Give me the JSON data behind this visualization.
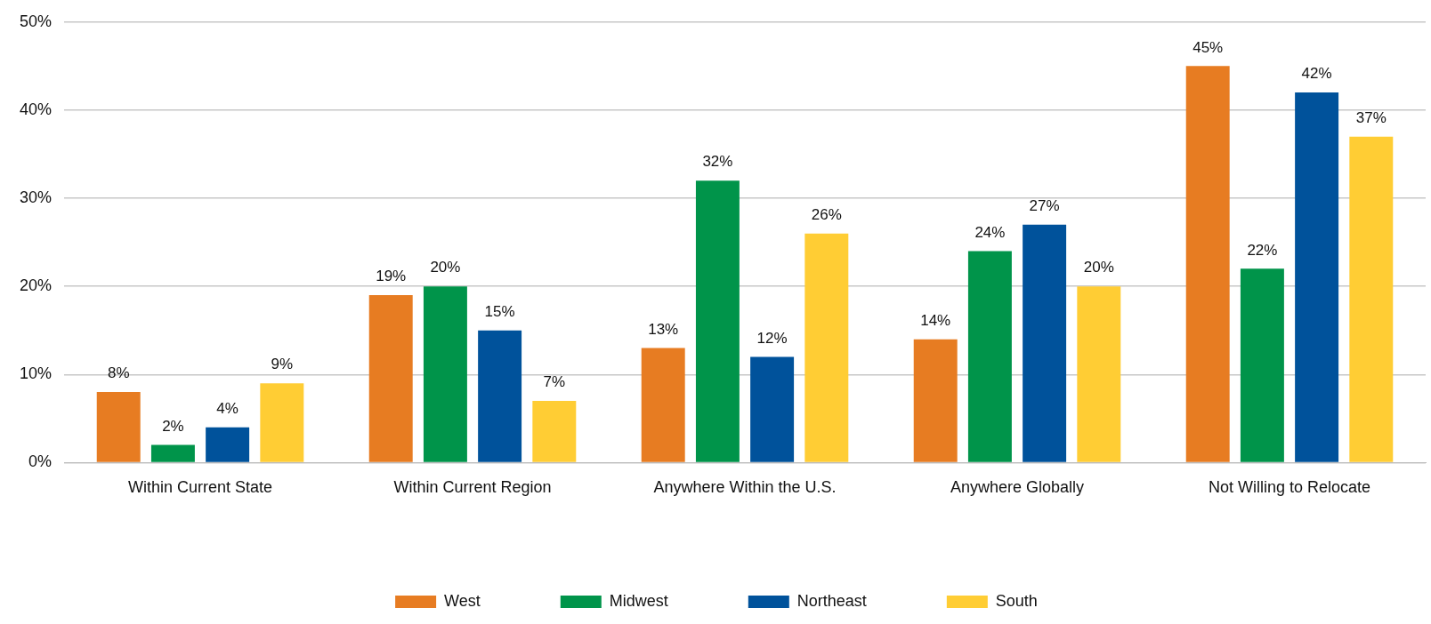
{
  "chart_data": {
    "type": "bar",
    "categories": [
      "Within Current State",
      "Within Current Region",
      "Anywhere Within the U.S.",
      "Anywhere Globally",
      "Not Willing to Relocate"
    ],
    "series": [
      {
        "name": "West",
        "color": "#e77c22",
        "values": [
          8,
          19,
          13,
          14,
          45
        ],
        "value_labels": [
          "8%",
          "19%",
          "13%",
          "14%",
          "45%"
        ]
      },
      {
        "name": "Midwest",
        "color": "#00944a",
        "values": [
          2,
          20,
          32,
          24,
          22
        ],
        "value_labels": [
          "2%",
          "20%",
          "32%",
          "24%",
          "22%"
        ]
      },
      {
        "name": "Northeast",
        "color": "#00529b",
        "values": [
          4,
          15,
          12,
          27,
          42
        ],
        "value_labels": [
          "4%",
          "15%",
          "12%",
          "27%",
          "42%"
        ]
      },
      {
        "name": "South",
        "color": "#ffcd34",
        "values": [
          9,
          7,
          26,
          20,
          37
        ],
        "value_labels": [
          "9%",
          "7%",
          "26%",
          "20%",
          "37%"
        ]
      }
    ],
    "ylim": [
      0,
      50
    ],
    "yticks": [
      {
        "value": 0,
        "label": "0%"
      },
      {
        "value": 10,
        "label": "10%"
      },
      {
        "value": 20,
        "label": "20%"
      },
      {
        "value": 30,
        "label": "30%"
      },
      {
        "value": 40,
        "label": "40%"
      },
      {
        "value": 50,
        "label": "50%"
      }
    ],
    "grid": "y",
    "legend": "bottom"
  }
}
